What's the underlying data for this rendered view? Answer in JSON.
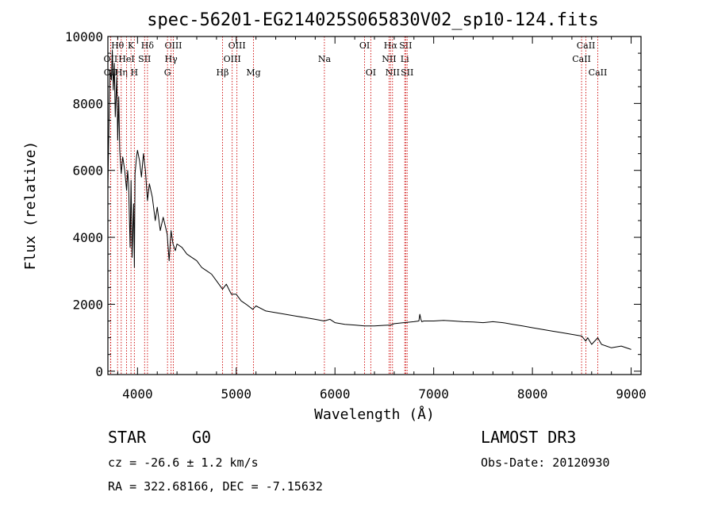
{
  "chart_data": {
    "type": "line",
    "title": "spec-56201-EG214025S065830V02_sp10-124.fits",
    "xlabel": "Wavelength (Å)",
    "ylabel": "Flux (relative)",
    "xlim": [
      3700,
      9100
    ],
    "ylim": [
      -100,
      10000
    ],
    "x_ticks": [
      4000,
      5000,
      6000,
      7000,
      8000,
      9000
    ],
    "x_tick_labels": [
      "4000",
      "5000",
      "6000",
      "7000",
      "8000",
      "9000"
    ],
    "y_ticks": [
      0,
      2000,
      4000,
      6000,
      8000,
      10000
    ],
    "y_tick_labels": [
      "0",
      "2000",
      "4000",
      "6000",
      "8000",
      "10000"
    ],
    "series": [
      {
        "name": "spectrum",
        "color": "#000000",
        "x": [
          3700,
          3720,
          3735,
          3745,
          3755,
          3765,
          3775,
          3790,
          3800,
          3810,
          3820,
          3835,
          3850,
          3870,
          3890,
          3900,
          3910,
          3925,
          3935,
          3945,
          3960,
          3968,
          3975,
          3990,
          4000,
          4020,
          4040,
          4060,
          4080,
          4101,
          4120,
          4150,
          4180,
          4200,
          4230,
          4260,
          4300,
          4320,
          4340,
          4360,
          4383,
          4400,
          4450,
          4500,
          4550,
          4600,
          4650,
          4700,
          4750,
          4800,
          4861,
          4900,
          4950,
          5000,
          5050,
          5100,
          5167,
          5200,
          5300,
          5400,
          5500,
          5600,
          5700,
          5800,
          5890,
          5950,
          6000,
          6100,
          6200,
          6300,
          6400,
          6500,
          6563,
          6600,
          6700,
          6800,
          6850,
          6860,
          6870,
          6880,
          6900,
          7000,
          7100,
          7200,
          7300,
          7400,
          7500,
          7600,
          7700,
          7800,
          7900,
          8000,
          8100,
          8200,
          8300,
          8400,
          8500,
          8540,
          8560,
          8600,
          8662,
          8700,
          8800,
          8900,
          9000
        ],
        "y": [
          5500,
          9000,
          8700,
          9600,
          8400,
          9200,
          7600,
          8800,
          6900,
          8200,
          6600,
          5900,
          6400,
          6000,
          5400,
          6000,
          5600,
          3700,
          5700,
          3400,
          5000,
          3100,
          5900,
          6400,
          6600,
          6300,
          5800,
          6500,
          6000,
          5100,
          5600,
          5200,
          4500,
          4900,
          4200,
          4600,
          4100,
          3300,
          4200,
          3800,
          3600,
          3800,
          3700,
          3500,
          3400,
          3300,
          3100,
          3000,
          2900,
          2700,
          2450,
          2600,
          2300,
          2300,
          2100,
          2000,
          1850,
          1950,
          1800,
          1750,
          1700,
          1650,
          1600,
          1550,
          1500,
          1550,
          1450,
          1400,
          1380,
          1350,
          1350,
          1370,
          1380,
          1420,
          1450,
          1480,
          1500,
          1700,
          1550,
          1480,
          1500,
          1500,
          1520,
          1500,
          1480,
          1470,
          1450,
          1480,
          1450,
          1400,
          1350,
          1300,
          1250,
          1200,
          1150,
          1100,
          1050,
          900,
          1000,
          800,
          1000,
          800,
          700,
          750,
          650
        ]
      }
    ],
    "line_markers": [
      {
        "name": "OII",
        "wavelength": 3727,
        "row": 2
      },
      {
        "name": "OII",
        "wavelength": 3729,
        "row": 3
      },
      {
        "name": "Hθ",
        "wavelength": 3798,
        "row": 1
      },
      {
        "name": "K",
        "wavelength": 3934,
        "row": 1
      },
      {
        "name": "Hδ",
        "wavelength": 4101,
        "row": 1
      },
      {
        "name": "OIII",
        "wavelength": 4363,
        "row": 1
      },
      {
        "name": "Hη",
        "wavelength": 3835,
        "row": 3
      },
      {
        "name": "H",
        "wavelength": 3968,
        "row": 3
      },
      {
        "name": "HeI",
        "wavelength": 3889,
        "row": 2
      },
      {
        "name": "SII",
        "wavelength": 4072,
        "row": 2
      },
      {
        "name": "Hγ",
        "wavelength": 4340,
        "row": 2
      },
      {
        "name": "G",
        "wavelength": 4304,
        "row": 3
      },
      {
        "name": "Hβ",
        "wavelength": 4861,
        "row": 3
      },
      {
        "name": "OIII",
        "wavelength": 5007,
        "row": 1
      },
      {
        "name": "OIII",
        "wavelength": 4959,
        "row": 2
      },
      {
        "name": "Mg",
        "wavelength": 5175,
        "row": 3
      },
      {
        "name": "Na",
        "wavelength": 5893,
        "row": 2
      },
      {
        "name": "OI",
        "wavelength": 6300,
        "row": 1
      },
      {
        "name": "OI",
        "wavelength": 6363,
        "row": 3
      },
      {
        "name": "Hα",
        "wavelength": 6563,
        "row": 1
      },
      {
        "name": "NII",
        "wavelength": 6548,
        "row": 2
      },
      {
        "name": "NII",
        "wavelength": 6583,
        "row": 3
      },
      {
        "name": "SII",
        "wavelength": 6716,
        "row": 1
      },
      {
        "name": "Li",
        "wavelength": 6707,
        "row": 2
      },
      {
        "name": "SII",
        "wavelength": 6731,
        "row": 3
      },
      {
        "name": "CaII",
        "wavelength": 8542,
        "row": 1
      },
      {
        "name": "CaII",
        "wavelength": 8498,
        "row": 2
      },
      {
        "name": "CaII",
        "wavelength": 8662,
        "row": 3
      }
    ],
    "marker_color": "#cc0000"
  },
  "info": {
    "class": "STAR",
    "subclass": "G0",
    "survey": "LAMOST DR3",
    "cz": "cz = -26.6 ± 1.2 km/s",
    "obs_date": "Obs-Date: 20120930",
    "coords": "RA = 322.68166, DEC =  -7.15632"
  }
}
